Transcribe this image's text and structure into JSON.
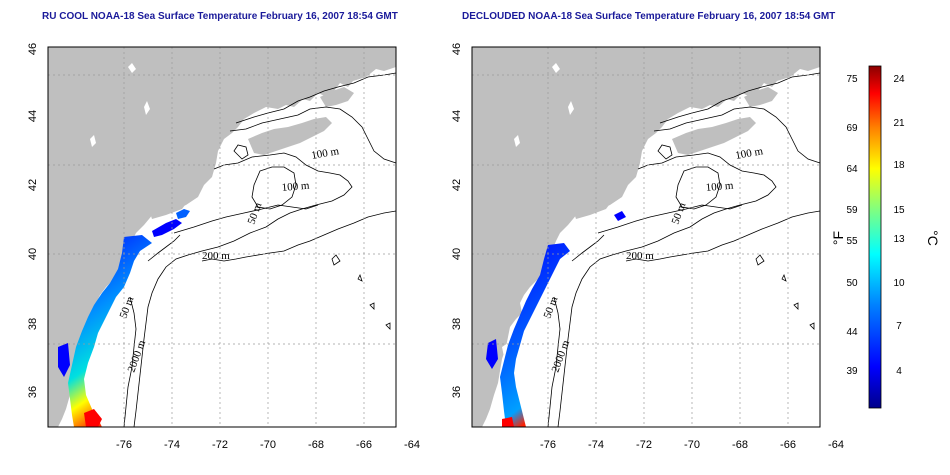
{
  "titles": {
    "left": "RU COOL NOAA-18 Sea Surface Temperature February 16, 2007 18:54 GMT",
    "right": "DECLOUDED NOAA-18 Sea Surface Temperature February 16, 2007 18:54 GMT"
  },
  "lon_ticks": [
    "-76",
    "-74",
    "-72",
    "-70",
    "-68",
    "-66",
    "-64"
  ],
  "lat_ticks": [
    "36",
    "38",
    "40",
    "42",
    "44",
    "46"
  ],
  "contour_labels": [
    "100 m",
    "100 m",
    "50 m",
    "200 m",
    "50 m",
    "2000 m"
  ],
  "colorbar": {
    "fahrenheit_ticks": [
      "75",
      "69",
      "64",
      "59",
      "55",
      "50",
      "44",
      "39"
    ],
    "celsius_ticks": [
      "24",
      "21",
      "18",
      "15",
      "13",
      "10",
      "7",
      "4"
    ],
    "fahrenheit_unit": "°F",
    "celsius_unit": "°C",
    "colors": [
      "#00008b",
      "#0000ff",
      "#0080ff",
      "#00ffff",
      "#80ff80",
      "#ffff00",
      "#ff8000",
      "#ff0000",
      "#8b0000"
    ]
  },
  "colors": {
    "land": "#bfbfbf",
    "title": "#1a1a9a"
  }
}
